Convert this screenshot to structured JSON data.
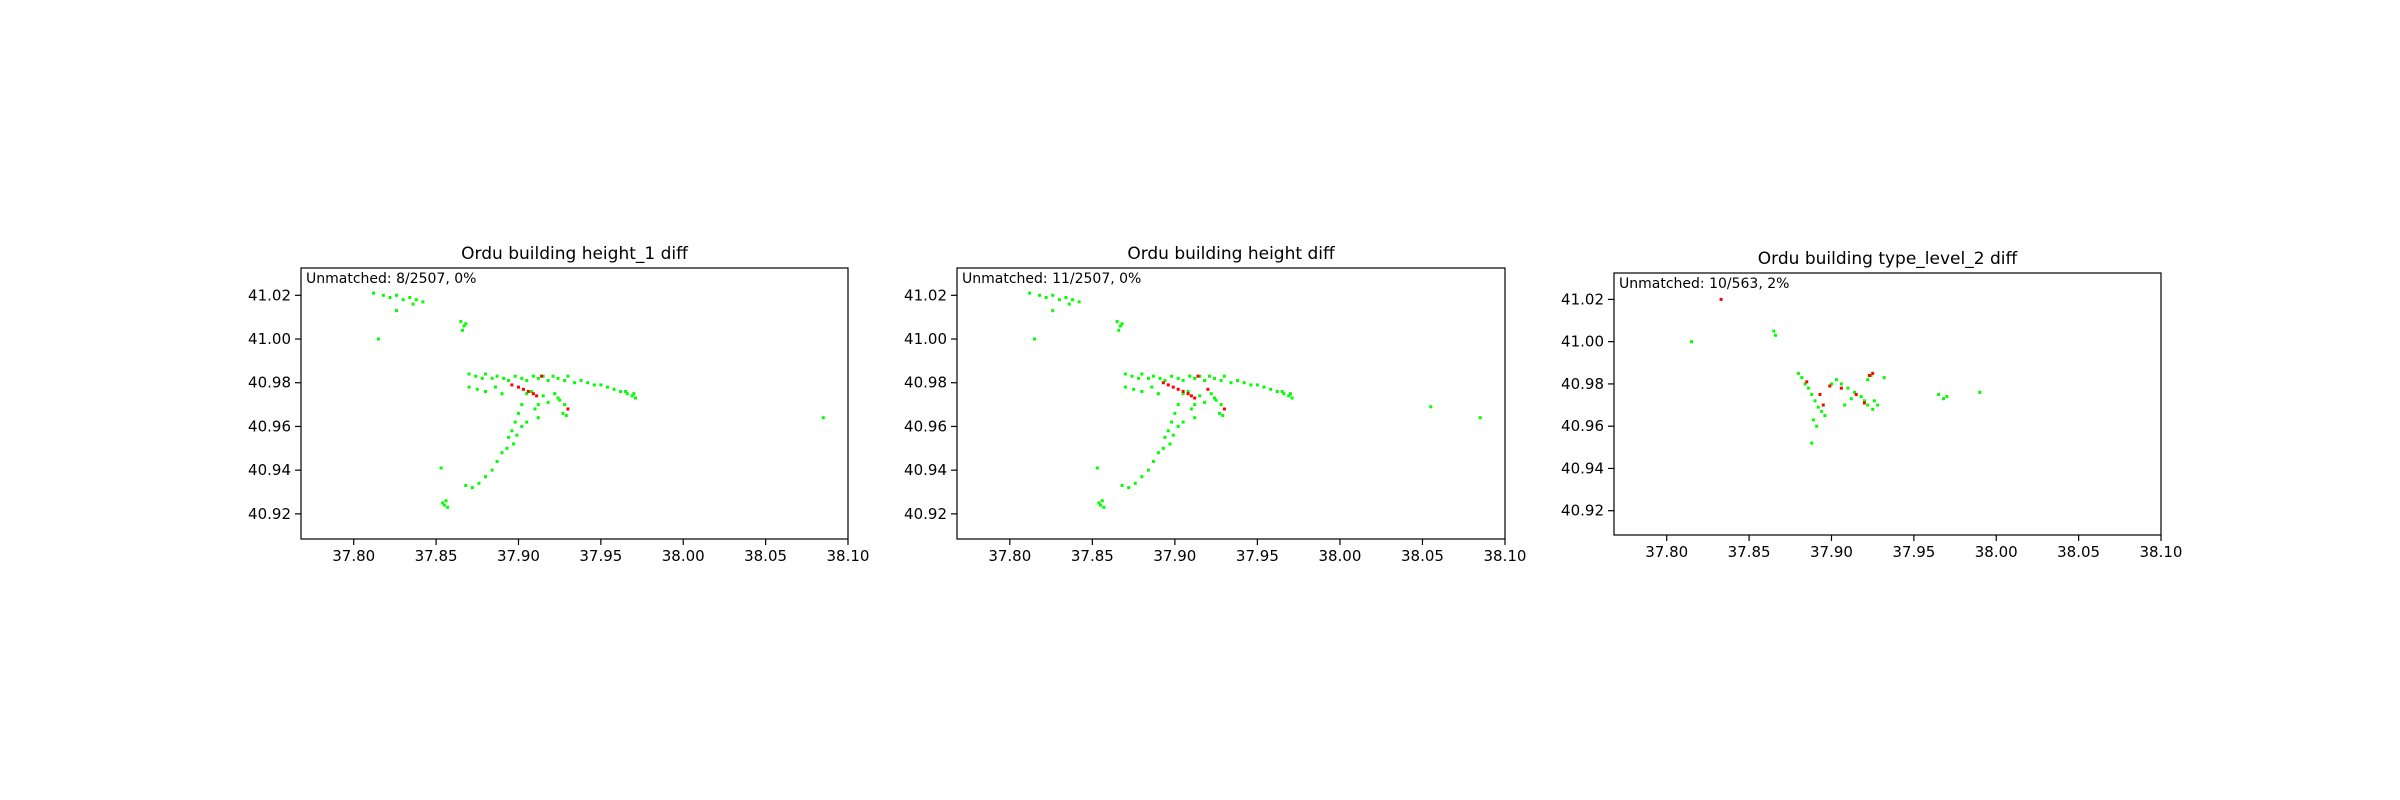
{
  "chart_data": [
    {
      "type": "scatter",
      "title": "Ordu building height_1 diff",
      "annotation": "Unmatched: 8/2507, 0%",
      "xlabel": "",
      "ylabel": "",
      "xlim": [
        37.768,
        38.1
      ],
      "ylim": [
        40.9085,
        41.0325
      ],
      "xticks": [
        "37.80",
        "37.85",
        "37.90",
        "37.95",
        "38.00",
        "38.05",
        "38.10"
      ],
      "yticks": [
        "40.92",
        "40.94",
        "40.96",
        "40.98",
        "41.00",
        "41.02"
      ],
      "grid": false,
      "colors": {
        "matched": "#00ff00",
        "unmatched": "#ff0000"
      },
      "series": [
        {
          "kind": "matched",
          "points": [
            [
              37.812,
              41.021
            ],
            [
              37.818,
              41.02
            ],
            [
              37.822,
              41.019
            ],
            [
              37.826,
              41.02
            ],
            [
              37.83,
              41.018
            ],
            [
              37.834,
              41.019
            ],
            [
              37.838,
              41.018
            ],
            [
              37.842,
              41.017
            ],
            [
              37.826,
              41.013
            ],
            [
              37.836,
              41.016
            ],
            [
              37.815,
              41.0
            ],
            [
              37.865,
              41.008
            ],
            [
              37.867,
              41.006
            ],
            [
              37.866,
              41.004
            ],
            [
              37.868,
              41.007
            ],
            [
              37.87,
              40.984
            ],
            [
              37.874,
              40.983
            ],
            [
              37.878,
              40.982
            ],
            [
              37.88,
              40.984
            ],
            [
              37.884,
              40.982
            ],
            [
              37.887,
              40.983
            ],
            [
              37.891,
              40.982
            ],
            [
              37.894,
              40.981
            ],
            [
              37.898,
              40.983
            ],
            [
              37.902,
              40.982
            ],
            [
              37.905,
              40.981
            ],
            [
              37.909,
              40.983
            ],
            [
              37.912,
              40.982
            ],
            [
              37.915,
              40.983
            ],
            [
              37.918,
              40.981
            ],
            [
              37.921,
              40.983
            ],
            [
              37.924,
              40.982
            ],
            [
              37.928,
              40.981
            ],
            [
              37.93,
              40.983
            ],
            [
              37.934,
              40.98
            ],
            [
              37.938,
              40.981
            ],
            [
              37.942,
              40.98
            ],
            [
              37.946,
              40.979
            ],
            [
              37.95,
              40.979
            ],
            [
              37.954,
              40.978
            ],
            [
              37.958,
              40.977
            ],
            [
              37.962,
              40.976
            ],
            [
              37.966,
              40.975
            ],
            [
              37.969,
              40.974
            ],
            [
              37.971,
              40.973
            ],
            [
              37.965,
              40.976
            ],
            [
              37.97,
              40.975
            ],
            [
              37.922,
              40.975
            ],
            [
              37.925,
              40.972
            ],
            [
              37.928,
              40.97
            ],
            [
              37.927,
              40.966
            ],
            [
              37.929,
              40.965
            ],
            [
              37.924,
              40.973
            ],
            [
              37.918,
              40.971
            ],
            [
              37.915,
              40.974
            ],
            [
              37.912,
              40.97
            ],
            [
              37.91,
              40.968
            ],
            [
              37.905,
              40.975
            ],
            [
              37.902,
              40.97
            ],
            [
              37.9,
              40.966
            ],
            [
              37.898,
              40.962
            ],
            [
              37.896,
              40.958
            ],
            [
              37.899,
              40.956
            ],
            [
              37.894,
              40.955
            ],
            [
              37.897,
              40.952
            ],
            [
              37.893,
              40.95
            ],
            [
              37.89,
              40.948
            ],
            [
              37.887,
              40.944
            ],
            [
              37.884,
              40.94
            ],
            [
              37.88,
              40.937
            ],
            [
              37.876,
              40.934
            ],
            [
              37.872,
              40.932
            ],
            [
              37.868,
              40.933
            ],
            [
              37.856,
              40.926
            ],
            [
              37.855,
              40.924
            ],
            [
              37.857,
              40.923
            ],
            [
              37.854,
              40.925
            ],
            [
              37.853,
              40.941
            ],
            [
              37.886,
              40.978
            ],
            [
              37.89,
              40.975
            ],
            [
              37.88,
              40.976
            ],
            [
              37.875,
              40.977
            ],
            [
              37.87,
              40.978
            ],
            [
              37.908,
              40.976
            ],
            [
              37.912,
              40.964
            ],
            [
              37.905,
              40.962
            ],
            [
              37.902,
              40.96
            ],
            [
              38.085,
              40.964
            ]
          ]
        },
        {
          "kind": "unmatched",
          "points": [
            [
              37.896,
              40.979
            ],
            [
              37.9,
              40.978
            ],
            [
              37.903,
              40.977
            ],
            [
              37.906,
              40.976
            ],
            [
              37.909,
              40.975
            ],
            [
              37.911,
              40.974
            ],
            [
              37.93,
              40.968
            ],
            [
              37.914,
              40.983
            ]
          ]
        }
      ]
    },
    {
      "type": "scatter",
      "title": "Ordu building height diff",
      "annotation": "Unmatched: 11/2507, 0%",
      "xlabel": "",
      "ylabel": "",
      "xlim": [
        37.768,
        38.1
      ],
      "ylim": [
        40.9085,
        41.0325
      ],
      "xticks": [
        "37.80",
        "37.85",
        "37.90",
        "37.95",
        "38.00",
        "38.05",
        "38.10"
      ],
      "yticks": [
        "40.92",
        "40.94",
        "40.96",
        "40.98",
        "41.00",
        "41.02"
      ],
      "grid": false,
      "colors": {
        "matched": "#00ff00",
        "unmatched": "#ff0000"
      },
      "series": [
        {
          "kind": "matched",
          "points": [
            [
              37.812,
              41.021
            ],
            [
              37.818,
              41.02
            ],
            [
              37.822,
              41.019
            ],
            [
              37.826,
              41.02
            ],
            [
              37.83,
              41.018
            ],
            [
              37.834,
              41.019
            ],
            [
              37.838,
              41.018
            ],
            [
              37.842,
              41.017
            ],
            [
              37.826,
              41.013
            ],
            [
              37.836,
              41.016
            ],
            [
              37.815,
              41.0
            ],
            [
              37.865,
              41.008
            ],
            [
              37.867,
              41.006
            ],
            [
              37.866,
              41.004
            ],
            [
              37.868,
              41.007
            ],
            [
              37.87,
              40.984
            ],
            [
              37.874,
              40.983
            ],
            [
              37.878,
              40.982
            ],
            [
              37.88,
              40.984
            ],
            [
              37.884,
              40.982
            ],
            [
              37.887,
              40.983
            ],
            [
              37.891,
              40.982
            ],
            [
              37.894,
              40.981
            ],
            [
              37.898,
              40.983
            ],
            [
              37.902,
              40.982
            ],
            [
              37.905,
              40.981
            ],
            [
              37.909,
              40.983
            ],
            [
              37.912,
              40.982
            ],
            [
              37.915,
              40.983
            ],
            [
              37.918,
              40.981
            ],
            [
              37.921,
              40.983
            ],
            [
              37.924,
              40.982
            ],
            [
              37.928,
              40.981
            ],
            [
              37.93,
              40.983
            ],
            [
              37.934,
              40.98
            ],
            [
              37.938,
              40.981
            ],
            [
              37.942,
              40.98
            ],
            [
              37.946,
              40.979
            ],
            [
              37.95,
              40.979
            ],
            [
              37.954,
              40.978
            ],
            [
              37.958,
              40.977
            ],
            [
              37.962,
              40.976
            ],
            [
              37.966,
              40.975
            ],
            [
              37.969,
              40.974
            ],
            [
              37.971,
              40.973
            ],
            [
              37.965,
              40.976
            ],
            [
              37.97,
              40.975
            ],
            [
              37.922,
              40.975
            ],
            [
              37.925,
              40.972
            ],
            [
              37.928,
              40.97
            ],
            [
              37.927,
              40.966
            ],
            [
              37.929,
              40.965
            ],
            [
              37.924,
              40.973
            ],
            [
              37.918,
              40.971
            ],
            [
              37.915,
              40.974
            ],
            [
              37.912,
              40.97
            ],
            [
              37.91,
              40.968
            ],
            [
              37.905,
              40.975
            ],
            [
              37.902,
              40.97
            ],
            [
              37.9,
              40.966
            ],
            [
              37.898,
              40.962
            ],
            [
              37.896,
              40.958
            ],
            [
              37.899,
              40.956
            ],
            [
              37.894,
              40.955
            ],
            [
              37.897,
              40.952
            ],
            [
              37.893,
              40.95
            ],
            [
              37.89,
              40.948
            ],
            [
              37.887,
              40.944
            ],
            [
              37.884,
              40.94
            ],
            [
              37.88,
              40.937
            ],
            [
              37.876,
              40.934
            ],
            [
              37.872,
              40.932
            ],
            [
              37.868,
              40.933
            ],
            [
              37.856,
              40.926
            ],
            [
              37.855,
              40.924
            ],
            [
              37.857,
              40.923
            ],
            [
              37.854,
              40.925
            ],
            [
              37.853,
              40.941
            ],
            [
              37.886,
              40.978
            ],
            [
              37.89,
              40.975
            ],
            [
              37.88,
              40.976
            ],
            [
              37.875,
              40.977
            ],
            [
              37.87,
              40.978
            ],
            [
              37.908,
              40.976
            ],
            [
              37.912,
              40.964
            ],
            [
              37.905,
              40.962
            ],
            [
              37.902,
              40.96
            ],
            [
              38.055,
              40.969
            ],
            [
              38.085,
              40.964
            ]
          ]
        },
        {
          "kind": "unmatched",
          "points": [
            [
              37.893,
              40.98
            ],
            [
              37.896,
              40.979
            ],
            [
              37.899,
              40.978
            ],
            [
              37.902,
              40.977
            ],
            [
              37.905,
              40.976
            ],
            [
              37.908,
              40.975
            ],
            [
              37.91,
              40.974
            ],
            [
              37.912,
              40.973
            ],
            [
              37.93,
              40.968
            ],
            [
              37.914,
              40.983
            ],
            [
              37.92,
              40.977
            ]
          ]
        }
      ]
    },
    {
      "type": "scatter",
      "title": "Ordu building type_level_2 diff",
      "annotation": "Unmatched: 10/563, 2%",
      "xlabel": "",
      "ylabel": "",
      "xlim": [
        37.768,
        38.1
      ],
      "ylim": [
        40.9085,
        41.0325
      ],
      "xticks": [
        "37.80",
        "37.85",
        "37.90",
        "37.95",
        "38.00",
        "38.05",
        "38.10"
      ],
      "yticks": [
        "40.92",
        "40.94",
        "40.96",
        "40.98",
        "41.00",
        "41.02"
      ],
      "grid": false,
      "colors": {
        "matched": "#00ff00",
        "unmatched": "#ff0000"
      },
      "series": [
        {
          "kind": "matched",
          "points": [
            [
              37.865,
              41.005
            ],
            [
              37.866,
              41.003
            ],
            [
              37.815,
              41.0
            ],
            [
              37.88,
              40.985
            ],
            [
              37.882,
              40.983
            ],
            [
              37.884,
              40.98
            ],
            [
              37.886,
              40.978
            ],
            [
              37.888,
              40.975
            ],
            [
              37.89,
              40.972
            ],
            [
              37.892,
              40.969
            ],
            [
              37.894,
              40.967
            ],
            [
              37.896,
              40.965
            ],
            [
              37.889,
              40.963
            ],
            [
              37.891,
              40.96
            ],
            [
              37.888,
              40.952
            ],
            [
              37.9,
              40.98
            ],
            [
              37.903,
              40.982
            ],
            [
              37.906,
              40.98
            ],
            [
              37.91,
              40.978
            ],
            [
              37.914,
              40.976
            ],
            [
              37.918,
              40.974
            ],
            [
              37.92,
              40.972
            ],
            [
              37.922,
              40.982
            ],
            [
              37.924,
              40.984
            ],
            [
              37.926,
              40.972
            ],
            [
              37.928,
              40.97
            ],
            [
              37.925,
              40.968
            ],
            [
              37.922,
              40.97
            ],
            [
              37.912,
              40.973
            ],
            [
              37.908,
              40.97
            ],
            [
              37.965,
              40.975
            ],
            [
              37.968,
              40.973
            ],
            [
              37.97,
              40.974
            ],
            [
              37.99,
              40.976
            ],
            [
              37.932,
              40.983
            ]
          ]
        },
        {
          "kind": "unmatched",
          "points": [
            [
              37.833,
              41.02
            ],
            [
              37.885,
              40.981
            ],
            [
              37.893,
              40.975
            ],
            [
              37.899,
              40.979
            ],
            [
              37.923,
              40.984
            ],
            [
              37.925,
              40.985
            ],
            [
              37.906,
              40.978
            ],
            [
              37.915,
              40.975
            ],
            [
              37.92,
              40.971
            ],
            [
              37.895,
              40.97
            ]
          ]
        }
      ]
    }
  ]
}
